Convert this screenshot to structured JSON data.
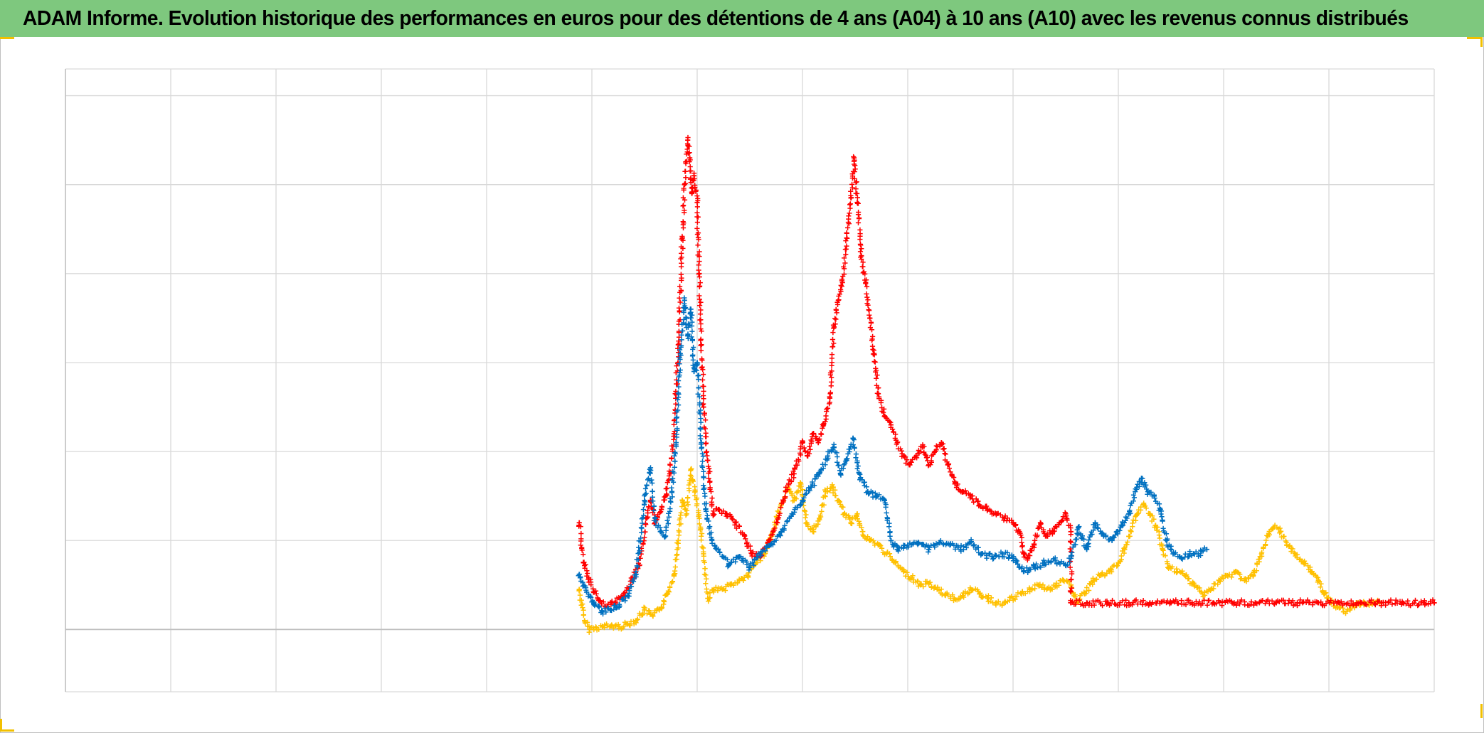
{
  "title": "ADAM Informe. Evolution historique des performances en euros pour des détentions de 4 ans (A04) à 10 ans (A10) avec les revenus connus distribués",
  "colors": {
    "title_bg": "#7ec87e",
    "corner_marks": "#f2c000",
    "grid": "#d9d9d9",
    "baseline": "#bfbfbf"
  },
  "chart_data": {
    "type": "scatter",
    "marker": "plus",
    "title": "ADAM Informe. Evolution historique des performances en euros pour des détentions de 4 ans (A04) à 10 ans (A10) avec les revenus connus distribués",
    "xlabel": "",
    "ylabel": "",
    "xlim": [
      0,
      13
    ],
    "ylim": [
      -0.7,
      6.3
    ],
    "baseline_y": 0,
    "grid": true,
    "legend": "none",
    "tick_labels_visible": false,
    "series": [
      {
        "color": "#ff0000",
        "points": [
          [
            4.88,
            1.2
          ],
          [
            4.92,
            0.75
          ],
          [
            4.97,
            0.58
          ],
          [
            5.02,
            0.42
          ],
          [
            5.08,
            0.32
          ],
          [
            5.15,
            0.26
          ],
          [
            5.22,
            0.3
          ],
          [
            5.3,
            0.38
          ],
          [
            5.38,
            0.55
          ],
          [
            5.45,
            0.72
          ],
          [
            5.52,
            1.25
          ],
          [
            5.56,
            1.45
          ],
          [
            5.6,
            1.2
          ],
          [
            5.66,
            1.35
          ],
          [
            5.7,
            1.5
          ],
          [
            5.74,
            1.75
          ],
          [
            5.78,
            2.2
          ],
          [
            5.82,
            3.2
          ],
          [
            5.86,
            4.4
          ],
          [
            5.88,
            5.0
          ],
          [
            5.91,
            5.5
          ],
          [
            5.93,
            5.3
          ],
          [
            5.95,
            4.9
          ],
          [
            5.97,
            5.1
          ],
          [
            6.0,
            4.8
          ],
          [
            6.02,
            4.0
          ],
          [
            6.04,
            3.2
          ],
          [
            6.06,
            2.5
          ],
          [
            6.1,
            1.9
          ],
          [
            6.15,
            1.3
          ],
          [
            6.2,
            1.35
          ],
          [
            6.28,
            1.3
          ],
          [
            6.36,
            1.2
          ],
          [
            6.45,
            1.05
          ],
          [
            6.52,
            0.85
          ],
          [
            6.6,
            0.82
          ],
          [
            6.68,
            1.0
          ],
          [
            6.76,
            1.2
          ],
          [
            6.84,
            1.55
          ],
          [
            6.92,
            1.75
          ],
          [
            7.0,
            2.1
          ],
          [
            7.05,
            1.95
          ],
          [
            7.1,
            2.2
          ],
          [
            7.15,
            2.1
          ],
          [
            7.2,
            2.3
          ],
          [
            7.26,
            2.6
          ],
          [
            7.3,
            3.4
          ],
          [
            7.34,
            3.7
          ],
          [
            7.38,
            3.9
          ],
          [
            7.42,
            4.4
          ],
          [
            7.46,
            4.85
          ],
          [
            7.49,
            5.3
          ],
          [
            7.52,
            4.8
          ],
          [
            7.56,
            4.2
          ],
          [
            7.6,
            3.9
          ],
          [
            7.64,
            3.5
          ],
          [
            7.68,
            3.1
          ],
          [
            7.72,
            2.65
          ],
          [
            7.78,
            2.4
          ],
          [
            7.84,
            2.3
          ],
          [
            7.9,
            2.1
          ],
          [
            7.96,
            1.95
          ],
          [
            8.02,
            1.85
          ],
          [
            8.08,
            1.95
          ],
          [
            8.14,
            2.05
          ],
          [
            8.2,
            1.85
          ],
          [
            8.26,
            2.0
          ],
          [
            8.32,
            2.1
          ],
          [
            8.38,
            1.85
          ],
          [
            8.45,
            1.65
          ],
          [
            8.52,
            1.55
          ],
          [
            8.6,
            1.5
          ],
          [
            8.68,
            1.4
          ],
          [
            8.76,
            1.35
          ],
          [
            8.84,
            1.3
          ],
          [
            8.92,
            1.25
          ],
          [
            9.0,
            1.2
          ],
          [
            9.06,
            1.1
          ],
          [
            9.1,
            0.85
          ],
          [
            9.14,
            0.8
          ],
          [
            9.2,
            0.95
          ],
          [
            9.26,
            1.2
          ],
          [
            9.32,
            1.05
          ],
          [
            9.38,
            1.1
          ],
          [
            9.44,
            1.2
          ],
          [
            9.5,
            1.3
          ],
          [
            9.55,
            1.1
          ],
          [
            9.55,
            0.3
          ],
          [
            9.7,
            0.3
          ],
          [
            9.9,
            0.3
          ],
          [
            10.1,
            0.3
          ],
          [
            10.3,
            0.3
          ],
          [
            10.5,
            0.3
          ],
          [
            10.7,
            0.3
          ],
          [
            10.9,
            0.3
          ],
          [
            11.1,
            0.3
          ],
          [
            11.3,
            0.3
          ],
          [
            11.5,
            0.3
          ],
          [
            11.7,
            0.3
          ],
          [
            11.9,
            0.3
          ],
          [
            12.1,
            0.3
          ],
          [
            12.3,
            0.3
          ],
          [
            12.5,
            0.3
          ],
          [
            12.7,
            0.3
          ],
          [
            12.9,
            0.3
          ],
          [
            13.0,
            0.3
          ]
        ]
      },
      {
        "color": "#0070c0",
        "points": [
          [
            4.88,
            0.62
          ],
          [
            4.95,
            0.42
          ],
          [
            5.02,
            0.28
          ],
          [
            5.1,
            0.2
          ],
          [
            5.18,
            0.22
          ],
          [
            5.26,
            0.28
          ],
          [
            5.34,
            0.38
          ],
          [
            5.42,
            0.62
          ],
          [
            5.5,
            1.45
          ],
          [
            5.55,
            1.8
          ],
          [
            5.6,
            1.25
          ],
          [
            5.65,
            1.1
          ],
          [
            5.7,
            1.05
          ],
          [
            5.76,
            1.55
          ],
          [
            5.8,
            2.1
          ],
          [
            5.84,
            3.1
          ],
          [
            5.88,
            3.7
          ],
          [
            5.91,
            3.3
          ],
          [
            5.94,
            3.6
          ],
          [
            5.97,
            2.9
          ],
          [
            6.0,
            3.0
          ],
          [
            6.04,
            2.1
          ],
          [
            6.08,
            1.35
          ],
          [
            6.14,
            1.0
          ],
          [
            6.2,
            0.9
          ],
          [
            6.3,
            0.72
          ],
          [
            6.4,
            0.82
          ],
          [
            6.5,
            0.7
          ],
          [
            6.6,
            0.85
          ],
          [
            6.7,
            0.95
          ],
          [
            6.8,
            1.1
          ],
          [
            6.9,
            1.3
          ],
          [
            7.0,
            1.45
          ],
          [
            7.08,
            1.6
          ],
          [
            7.16,
            1.75
          ],
          [
            7.24,
            1.95
          ],
          [
            7.3,
            2.05
          ],
          [
            7.36,
            1.75
          ],
          [
            7.42,
            1.9
          ],
          [
            7.48,
            2.15
          ],
          [
            7.55,
            1.7
          ],
          [
            7.62,
            1.55
          ],
          [
            7.7,
            1.5
          ],
          [
            7.78,
            1.45
          ],
          [
            7.84,
            1.0
          ],
          [
            7.9,
            0.9
          ],
          [
            8.0,
            0.95
          ],
          [
            8.1,
            0.98
          ],
          [
            8.2,
            0.9
          ],
          [
            8.3,
            0.98
          ],
          [
            8.4,
            0.95
          ],
          [
            8.5,
            0.9
          ],
          [
            8.6,
            0.98
          ],
          [
            8.7,
            0.85
          ],
          [
            8.8,
            0.82
          ],
          [
            8.9,
            0.85
          ],
          [
            9.0,
            0.8
          ],
          [
            9.1,
            0.65
          ],
          [
            9.2,
            0.7
          ],
          [
            9.3,
            0.75
          ],
          [
            9.4,
            0.78
          ],
          [
            9.5,
            0.72
          ],
          [
            9.55,
            0.8
          ],
          [
            9.62,
            1.15
          ],
          [
            9.7,
            0.9
          ],
          [
            9.78,
            1.2
          ],
          [
            9.86,
            1.05
          ],
          [
            9.94,
            1.0
          ],
          [
            10.02,
            1.15
          ],
          [
            10.1,
            1.3
          ],
          [
            10.16,
            1.55
          ],
          [
            10.22,
            1.7
          ],
          [
            10.28,
            1.55
          ],
          [
            10.34,
            1.5
          ],
          [
            10.4,
            1.35
          ],
          [
            10.46,
            1.0
          ],
          [
            10.52,
            0.85
          ],
          [
            10.6,
            0.8
          ],
          [
            10.68,
            0.85
          ],
          [
            10.76,
            0.85
          ],
          [
            10.84,
            0.9
          ]
        ]
      },
      {
        "color": "#ffc000",
        "points": [
          [
            4.88,
            0.45
          ],
          [
            4.93,
            0.1
          ],
          [
            4.98,
            0.0
          ],
          [
            5.04,
            0.02
          ],
          [
            5.1,
            0.03
          ],
          [
            5.18,
            0.04
          ],
          [
            5.26,
            0.03
          ],
          [
            5.34,
            0.06
          ],
          [
            5.42,
            0.1
          ],
          [
            5.5,
            0.22
          ],
          [
            5.58,
            0.15
          ],
          [
            5.66,
            0.25
          ],
          [
            5.72,
            0.4
          ],
          [
            5.78,
            0.62
          ],
          [
            5.82,
            1.0
          ],
          [
            5.86,
            1.45
          ],
          [
            5.9,
            1.3
          ],
          [
            5.94,
            1.8
          ],
          [
            5.98,
            1.55
          ],
          [
            6.02,
            1.25
          ],
          [
            6.06,
            0.85
          ],
          [
            6.1,
            0.35
          ],
          [
            6.16,
            0.45
          ],
          [
            6.24,
            0.45
          ],
          [
            6.32,
            0.5
          ],
          [
            6.4,
            0.55
          ],
          [
            6.48,
            0.6
          ],
          [
            6.56,
            0.75
          ],
          [
            6.64,
            0.85
          ],
          [
            6.72,
            1.1
          ],
          [
            6.8,
            1.4
          ],
          [
            6.86,
            1.6
          ],
          [
            6.92,
            1.45
          ],
          [
            6.98,
            1.65
          ],
          [
            7.04,
            1.2
          ],
          [
            7.1,
            1.1
          ],
          [
            7.16,
            1.25
          ],
          [
            7.22,
            1.55
          ],
          [
            7.28,
            1.6
          ],
          [
            7.34,
            1.45
          ],
          [
            7.4,
            1.3
          ],
          [
            7.46,
            1.2
          ],
          [
            7.52,
            1.3
          ],
          [
            7.58,
            1.05
          ],
          [
            7.64,
            1.0
          ],
          [
            7.72,
            0.95
          ],
          [
            7.8,
            0.85
          ],
          [
            7.88,
            0.75
          ],
          [
            7.96,
            0.65
          ],
          [
            8.04,
            0.58
          ],
          [
            8.12,
            0.5
          ],
          [
            8.2,
            0.52
          ],
          [
            8.28,
            0.45
          ],
          [
            8.36,
            0.4
          ],
          [
            8.44,
            0.35
          ],
          [
            8.52,
            0.38
          ],
          [
            8.6,
            0.45
          ],
          [
            8.68,
            0.4
          ],
          [
            8.76,
            0.35
          ],
          [
            8.84,
            0.3
          ],
          [
            8.92,
            0.3
          ],
          [
            9.0,
            0.35
          ],
          [
            9.08,
            0.4
          ],
          [
            9.16,
            0.45
          ],
          [
            9.24,
            0.5
          ],
          [
            9.32,
            0.45
          ],
          [
            9.4,
            0.48
          ],
          [
            9.48,
            0.55
          ],
          [
            9.55,
            0.5
          ],
          [
            9.6,
            0.3
          ],
          [
            9.68,
            0.4
          ],
          [
            9.76,
            0.55
          ],
          [
            9.84,
            0.62
          ],
          [
            9.92,
            0.65
          ],
          [
            10.0,
            0.75
          ],
          [
            10.06,
            0.9
          ],
          [
            10.12,
            1.1
          ],
          [
            10.18,
            1.3
          ],
          [
            10.24,
            1.4
          ],
          [
            10.3,
            1.3
          ],
          [
            10.36,
            1.15
          ],
          [
            10.42,
            0.9
          ],
          [
            10.48,
            0.7
          ],
          [
            10.56,
            0.65
          ],
          [
            10.64,
            0.6
          ],
          [
            10.72,
            0.5
          ],
          [
            10.8,
            0.4
          ],
          [
            10.88,
            0.45
          ],
          [
            10.96,
            0.55
          ],
          [
            11.04,
            0.6
          ],
          [
            11.12,
            0.65
          ],
          [
            11.2,
            0.55
          ],
          [
            11.28,
            0.6
          ],
          [
            11.36,
            0.85
          ],
          [
            11.42,
            1.05
          ],
          [
            11.48,
            1.15
          ],
          [
            11.54,
            1.1
          ],
          [
            11.6,
            0.95
          ],
          [
            11.68,
            0.85
          ],
          [
            11.76,
            0.75
          ],
          [
            11.84,
            0.65
          ],
          [
            11.9,
            0.55
          ],
          [
            11.96,
            0.4
          ],
          [
            12.02,
            0.3
          ],
          [
            12.08,
            0.25
          ],
          [
            12.14,
            0.2
          ],
          [
            12.2,
            0.22
          ],
          [
            12.26,
            0.3
          ],
          [
            12.34,
            0.3
          ],
          [
            12.42,
            0.3
          ],
          [
            12.5,
            0.3
          ]
        ]
      }
    ]
  }
}
